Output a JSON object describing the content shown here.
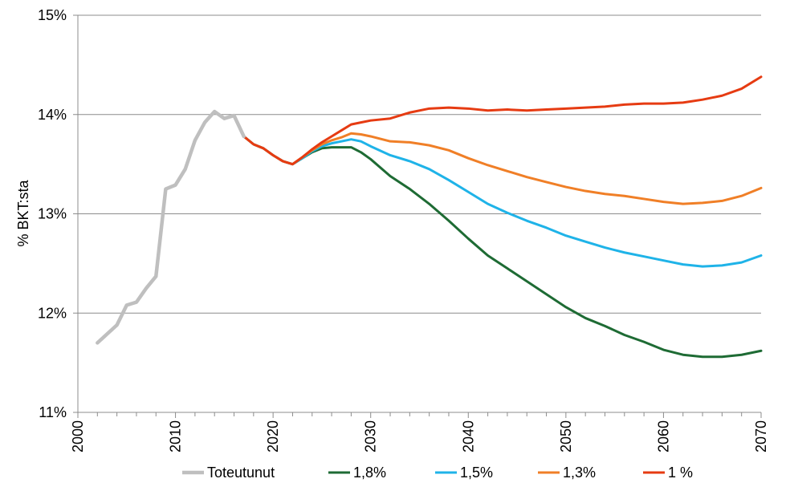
{
  "chart_data": {
    "type": "line",
    "title": "",
    "xlabel": "",
    "ylabel": "%  BKT:sta",
    "xlim": [
      2000,
      2070
    ],
    "ylim": [
      11,
      15
    ],
    "grid": "horizontal",
    "legend_position": "bottom",
    "x_ticks": [
      "2000",
      "2010",
      "2020",
      "2030",
      "2040",
      "2050",
      "2060",
      "2070"
    ],
    "y_ticks": [
      "11%",
      "12%",
      "13%",
      "14%",
      "15%"
    ],
    "series": [
      {
        "name": "Toteutunut",
        "color": "#bfbfbf",
        "x": [
          2002,
          2003,
          2004,
          2005,
          2006,
          2007,
          2008,
          2009,
          2010,
          2011,
          2012,
          2013,
          2014,
          2015,
          2016,
          2017
        ],
        "values": [
          11.7,
          11.79,
          11.88,
          12.08,
          12.11,
          12.25,
          12.37,
          13.25,
          13.29,
          13.45,
          13.74,
          13.92,
          14.03,
          13.96,
          13.99,
          13.78
        ]
      },
      {
        "name": "1,8%",
        "color": "#1e6b34",
        "x": [
          2017,
          2018,
          2019,
          2020,
          2021,
          2022,
          2023,
          2024,
          2025,
          2026,
          2027,
          2028,
          2029,
          2030,
          2032,
          2034,
          2036,
          2038,
          2040,
          2042,
          2044,
          2046,
          2048,
          2050,
          2052,
          2054,
          2056,
          2058,
          2060,
          2062,
          2064,
          2066,
          2068,
          2070
        ],
        "values": [
          13.78,
          13.7,
          13.66,
          13.59,
          13.53,
          13.5,
          13.56,
          13.62,
          13.66,
          13.67,
          13.67,
          13.67,
          13.62,
          13.55,
          13.38,
          13.25,
          13.1,
          12.93,
          12.75,
          12.58,
          12.45,
          12.32,
          12.19,
          12.06,
          11.95,
          11.87,
          11.78,
          11.71,
          11.63,
          11.58,
          11.56,
          11.56,
          11.58,
          11.62
        ]
      },
      {
        "name": "1,5%",
        "color": "#1fb3e8",
        "x": [
          2017,
          2018,
          2019,
          2020,
          2021,
          2022,
          2023,
          2024,
          2025,
          2026,
          2027,
          2028,
          2029,
          2030,
          2032,
          2034,
          2036,
          2038,
          2040,
          2042,
          2044,
          2046,
          2048,
          2050,
          2052,
          2054,
          2056,
          2058,
          2060,
          2062,
          2064,
          2066,
          2068,
          2070
        ],
        "values": [
          13.78,
          13.7,
          13.66,
          13.59,
          13.53,
          13.5,
          13.56,
          13.63,
          13.68,
          13.71,
          13.73,
          13.75,
          13.73,
          13.68,
          13.59,
          13.53,
          13.45,
          13.34,
          13.22,
          13.1,
          13.01,
          12.93,
          12.86,
          12.78,
          12.72,
          12.66,
          12.61,
          12.57,
          12.53,
          12.49,
          12.47,
          12.48,
          12.51,
          12.58
        ]
      },
      {
        "name": "1,3%",
        "color": "#f07f27",
        "x": [
          2017,
          2018,
          2019,
          2020,
          2021,
          2022,
          2023,
          2024,
          2025,
          2026,
          2027,
          2028,
          2029,
          2030,
          2032,
          2034,
          2036,
          2038,
          2040,
          2042,
          2044,
          2046,
          2048,
          2050,
          2052,
          2054,
          2056,
          2058,
          2060,
          2062,
          2064,
          2066,
          2068,
          2070
        ],
        "values": [
          13.78,
          13.7,
          13.66,
          13.59,
          13.53,
          13.5,
          13.57,
          13.64,
          13.7,
          13.74,
          13.77,
          13.81,
          13.8,
          13.78,
          13.73,
          13.72,
          13.69,
          13.64,
          13.56,
          13.49,
          13.43,
          13.37,
          13.32,
          13.27,
          13.23,
          13.2,
          13.18,
          13.15,
          13.12,
          13.1,
          13.11,
          13.13,
          13.18,
          13.26
        ]
      },
      {
        "name": "1 %",
        "color": "#e63b12",
        "x": [
          2017,
          2018,
          2019,
          2020,
          2021,
          2022,
          2023,
          2024,
          2025,
          2026,
          2027,
          2028,
          2029,
          2030,
          2032,
          2034,
          2036,
          2038,
          2040,
          2042,
          2044,
          2046,
          2048,
          2050,
          2052,
          2054,
          2056,
          2058,
          2060,
          2062,
          2064,
          2066,
          2068,
          2070
        ],
        "values": [
          13.78,
          13.7,
          13.66,
          13.59,
          13.53,
          13.5,
          13.57,
          13.65,
          13.72,
          13.78,
          13.84,
          13.9,
          13.92,
          13.94,
          13.96,
          14.02,
          14.06,
          14.07,
          14.06,
          14.04,
          14.05,
          14.04,
          14.05,
          14.06,
          14.07,
          14.08,
          14.1,
          14.11,
          14.11,
          14.12,
          14.15,
          14.19,
          14.26,
          14.38
        ]
      }
    ]
  }
}
